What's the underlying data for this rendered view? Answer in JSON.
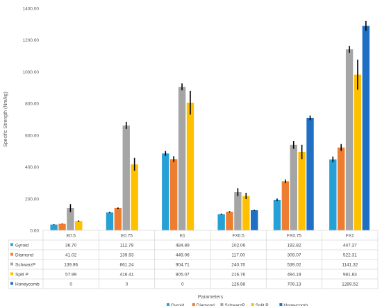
{
  "chart_data": {
    "type": "bar",
    "title": "",
    "xlabel": "Parameters",
    "ylabel": "Specific Strength (Nm/kg)",
    "ylim": [
      0,
      1400
    ],
    "yticks": [
      "0.00",
      "200.00",
      "400.00",
      "600.00",
      "800.00",
      "1000.00",
      "1200.00",
      "1400.00"
    ],
    "categories": [
      "E0.5",
      "E0.75",
      "E1",
      "FX0.5",
      "FX0.75",
      "FX1"
    ],
    "grid": false,
    "legend_position": "bottom",
    "data_table": true,
    "series": [
      {
        "name": "Gyroid",
        "color": "#27A0D6",
        "values": [
          36.7,
          112.79,
          484.89,
          102.06,
          192.82,
          447.37
        ],
        "labels": [
          "36.70",
          "112.79",
          "484.89",
          "102.06",
          "192.82",
          "447.37"
        ],
        "errors": [
          2,
          4,
          15,
          4,
          8,
          18
        ]
      },
      {
        "name": "Diamond",
        "color": "#ED7D31",
        "values": [
          41.02,
          139.93,
          449.06,
          117.0,
          309.07,
          522.31
        ],
        "labels": [
          "41.02",
          "139.93",
          "449.06",
          "117.00",
          "309.07",
          "522.31"
        ],
        "errors": [
          2,
          5,
          18,
          4,
          12,
          22
        ]
      },
      {
        "name": "SchwarzP",
        "color": "#A5A5A5",
        "values": [
          139.96,
          661.24,
          904.71,
          240.7,
          539.02,
          1141.32
        ],
        "labels": [
          "139.96",
          "661.24",
          "904.71",
          "240.70",
          "539.02",
          "1141.32"
        ],
        "errors": [
          25,
          22,
          22,
          25,
          25,
          22
        ]
      },
      {
        "name": "Split P",
        "color": "#FFC000",
        "values": [
          57.99,
          416.41,
          805.07,
          216.76,
          494.19,
          981.83
        ],
        "labels": [
          "57.99",
          "416.41",
          "805.07",
          "216.76",
          "494.19",
          "981.83"
        ],
        "errors": [
          5,
          40,
          75,
          20,
          45,
          95
        ]
      },
      {
        "name": "Honeycomb",
        "color": "#1F6FC5",
        "values": [
          0,
          0,
          0,
          126.98,
          709.13,
          1289.52
        ],
        "labels": [
          "0",
          "0",
          "0",
          "126.98",
          "709.13",
          "1289.52"
        ],
        "errors": [
          0,
          0,
          0,
          3,
          15,
          32
        ]
      }
    ]
  }
}
